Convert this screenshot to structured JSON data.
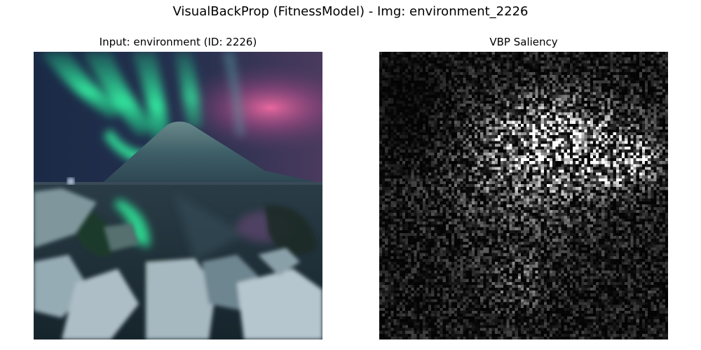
{
  "figure": {
    "suptitle": "VisualBackProp (FitnessModel) - Img: environment_2226"
  },
  "panels": [
    {
      "title": "Input: environment (ID: 2226)",
      "content": "aurora-over-mountain-photo"
    },
    {
      "title": "VBP Saliency",
      "content": "grayscale-saliency-map"
    }
  ],
  "colors": {
    "sky_dark": "#1c2440",
    "aurora_green": "#2ee89a",
    "aurora_pink": "#e0609a",
    "mountain": "#3c5a66",
    "water": "#1e3038",
    "rocks": "#a8bcc4",
    "saliency_bg": "#0a0a0a"
  }
}
